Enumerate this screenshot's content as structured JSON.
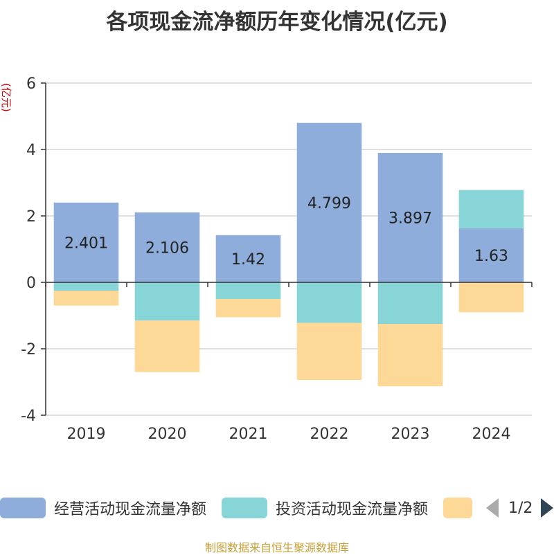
{
  "chart_data": {
    "type": "bar",
    "stacked": true,
    "title": "各项现金流净额历年变化情况(亿元)",
    "ylabel": "(亿元)",
    "categories": [
      "2019",
      "2020",
      "2021",
      "2022",
      "2023",
      "2024"
    ],
    "ylim": [
      -4,
      6
    ],
    "yticks": [
      -4,
      -2,
      0,
      2,
      4,
      6
    ],
    "grid": true,
    "legend_position": "bottom",
    "series": [
      {
        "name": "经营活动现金流量净额",
        "color": "#8eaddb",
        "values": [
          2.401,
          2.106,
          1.42,
          4.799,
          3.897,
          1.63
        ],
        "labels": [
          "2.401",
          "2.106",
          "1.42",
          "4.799",
          "3.897",
          "1.63"
        ]
      },
      {
        "name": "投资活动现金流量净额",
        "color": "#88d5d8",
        "values": [
          -0.25,
          -1.15,
          -0.5,
          -1.22,
          -1.25,
          1.15
        ]
      },
      {
        "color": "#fed897",
        "values": [
          -0.45,
          -1.55,
          -0.55,
          -1.72,
          -1.88,
          -0.9
        ]
      }
    ]
  },
  "legend": {
    "pager": "1/2"
  },
  "source": "制图数据来自恒生聚源数据库"
}
